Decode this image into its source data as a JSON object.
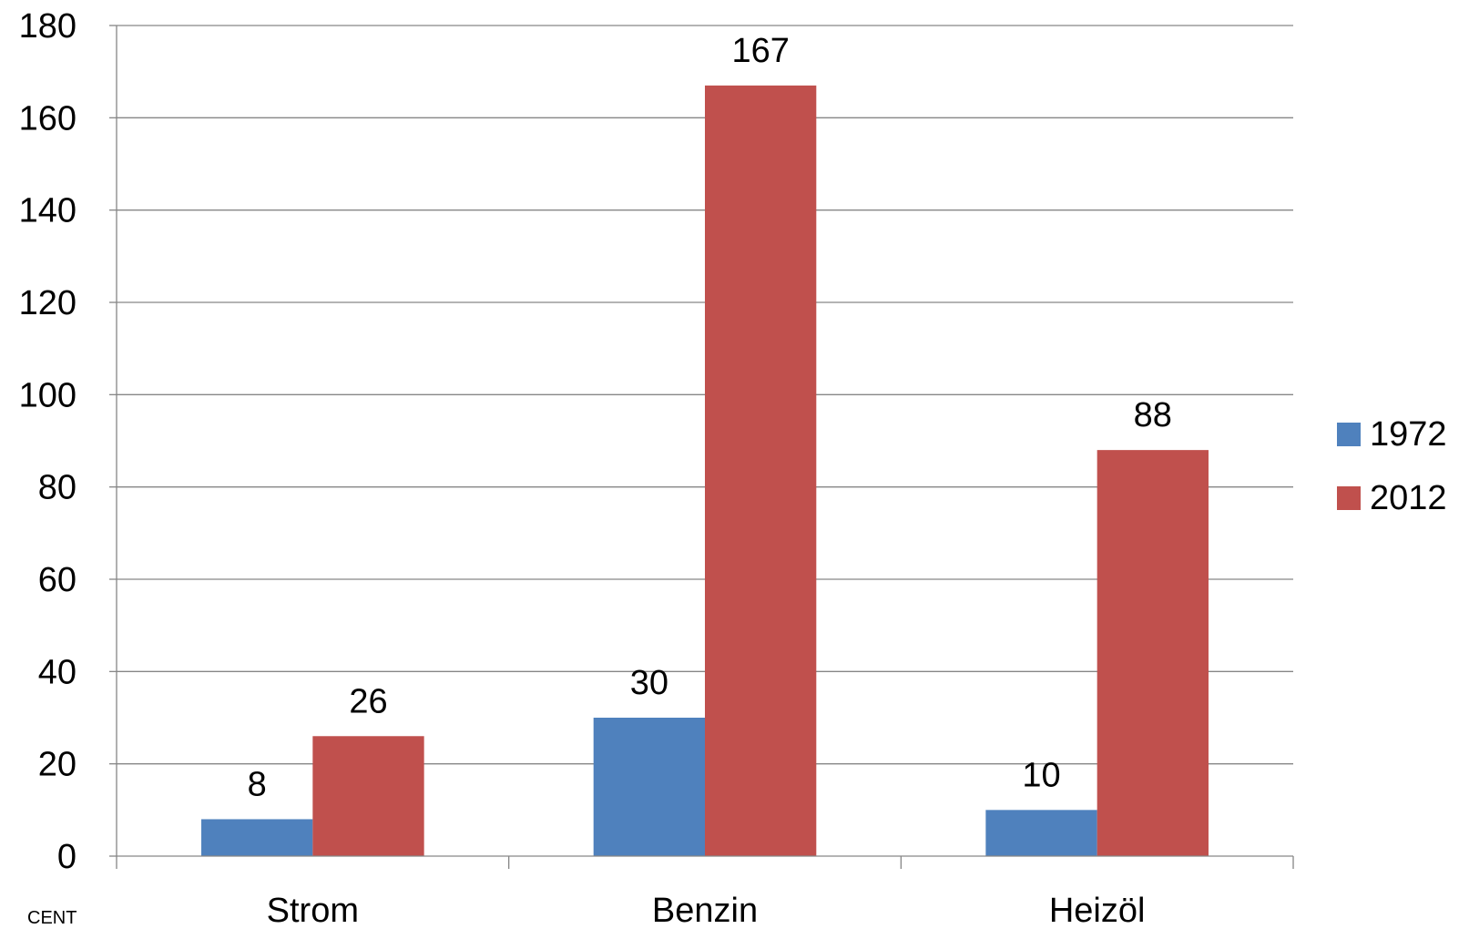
{
  "chart_data": {
    "type": "bar",
    "categories": [
      "Strom",
      "Benzin",
      "Heizöl"
    ],
    "series": [
      {
        "name": "1972",
        "values": [
          8,
          30,
          10
        ],
        "color": "#4F81BD"
      },
      {
        "name": "2012",
        "values": [
          26,
          167,
          88
        ],
        "color": "#C0504D"
      }
    ],
    "title": "",
    "xlabel": "",
    "ylabel": "",
    "ylim": [
      0,
      180
    ],
    "yticks": [
      0,
      20,
      40,
      60,
      80,
      100,
      120,
      140,
      160,
      180
    ],
    "grid": true,
    "legend_position": "right",
    "data_labels": true,
    "corner_note": "CENT"
  }
}
